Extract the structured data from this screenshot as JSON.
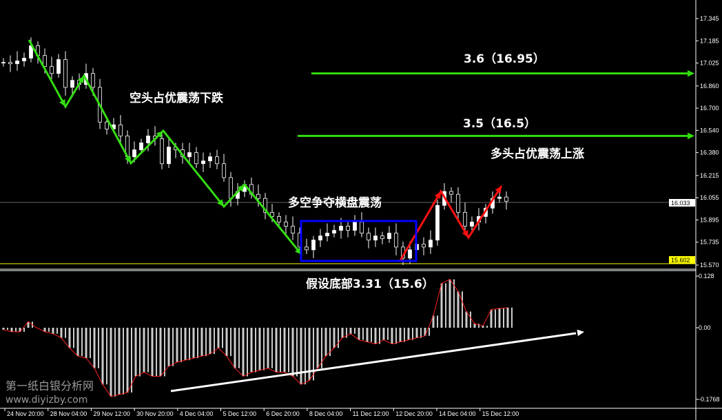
{
  "chart_data": {
    "type": "candlestick",
    "price_axis": {
      "ticks": [
        "17.345",
        "17.185",
        "17.025",
        "16.860",
        "16.700",
        "16.540",
        "16.380",
        "16.215",
        "16.055",
        "15.895",
        "15.735",
        "15.570"
      ],
      "range": [
        15.57,
        17.345
      ],
      "current_price": "16.033",
      "marked_price": "15.602"
    },
    "closes": [
      17.03,
      17.02,
      17.04,
      17.06,
      17.15,
      17.08,
      17.0,
      16.95,
      17.05,
      16.85,
      16.9,
      16.87,
      16.95,
      16.85,
      16.6,
      16.55,
      16.58,
      16.5,
      16.35,
      16.4,
      16.45,
      16.5,
      16.48,
      16.3,
      16.42,
      16.4,
      16.35,
      16.38,
      16.3,
      16.32,
      16.35,
      16.3,
      16.2,
      16.05,
      16.1,
      16.15,
      16.08,
      16.05,
      15.95,
      15.92,
      15.88,
      15.85,
      15.8,
      15.7,
      15.68,
      15.75,
      15.78,
      15.8,
      15.82,
      15.85,
      15.82,
      15.88,
      15.8,
      15.75,
      15.78,
      15.76,
      15.8,
      15.7,
      15.62,
      15.68,
      15.72,
      15.7,
      15.75,
      16.0,
      16.1,
      16.08,
      15.95,
      15.85,
      15.88,
      15.92,
      15.98,
      16.05,
      16.06,
      16.03
    ],
    "indicator": {
      "ticks": [
        "0.128",
        "0.00",
        "-0.1768"
      ],
      "range": [
        -0.1768,
        0.128
      ],
      "values": [
        -0.005,
        -0.01,
        -0.01,
        0.015,
        0.0,
        -0.01,
        -0.015,
        -0.025,
        -0.05,
        -0.07,
        -0.075,
        -0.1,
        -0.14,
        -0.17,
        -0.165,
        -0.16,
        -0.12,
        -0.11,
        -0.12,
        -0.12,
        -0.095,
        -0.085,
        -0.08,
        -0.075,
        -0.07,
        -0.065,
        -0.05,
        -0.07,
        -0.1,
        -0.12,
        -0.11,
        -0.105,
        -0.1,
        -0.11,
        -0.11,
        -0.12,
        -0.14,
        -0.13,
        -0.1,
        -0.07,
        -0.05,
        -0.025,
        -0.015,
        -0.03,
        -0.035,
        -0.04,
        -0.03,
        -0.04,
        -0.035,
        -0.03,
        -0.025,
        -0.02,
        0.03,
        0.11,
        0.12,
        0.09,
        0.04,
        0.01,
        0.005,
        0.045,
        0.048,
        0.05
      ]
    },
    "x_ticks": [
      "24 Nov 20:00",
      "28 Nov 04:00",
      "29 Nov 12:00",
      "30 Nov 20:00",
      "4 Dec 04:00",
      "5 Dec 12:00",
      "6 Dec 20:00",
      "8 Dec 04:00",
      "11 Dec 12:00",
      "12 Dec 20:00",
      "14 Dec 04:00",
      "15 Dec 12:00"
    ],
    "annotations": {
      "bear": "空头占优震荡下跌",
      "range": "多空争夺横盘震荡",
      "bull": "多头占优震荡上涨",
      "target1": "3.6（16.95）",
      "target2": "3.5（16.5）",
      "bottom": "假设底部3.31（15.6）"
    },
    "target_prices": [
      16.95,
      16.5
    ],
    "colors": {
      "up": "#ffffff",
      "down": "#ffffff",
      "bear_path": "#33dd11",
      "bull_path": "#ff1111",
      "range_box": "#0000ff",
      "marker_line": "#ffff00"
    }
  },
  "watermark": {
    "name": "第一纸白银分析网",
    "url": "www.diyizby.com"
  }
}
